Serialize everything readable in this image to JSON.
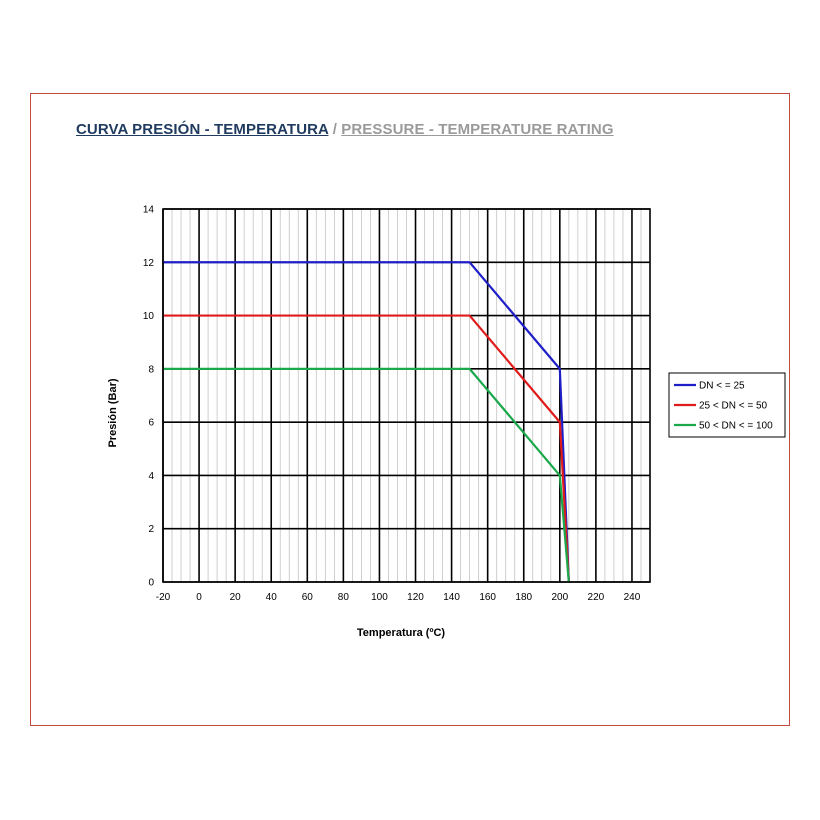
{
  "title": {
    "spanish": "CURVA PRESIÓN - TEMPERATURA",
    "separator": " / ",
    "english": "PRESSURE - TEMPERATURE RATING"
  },
  "colors": {
    "frame": "#c8473f",
    "title_es": "#1f3a5f",
    "title_en": "#9a9a9a",
    "series": [
      "#1f1fc8",
      "#e01b1b",
      "#1aa84a"
    ]
  },
  "chart_data": {
    "type": "line",
    "xlabel": "Temperatura (ºC)",
    "ylabel": "Presión (Bar)",
    "xlim": [
      -20,
      250
    ],
    "ylim": [
      0,
      14
    ],
    "xticks": [
      -20,
      0,
      20,
      40,
      60,
      80,
      100,
      120,
      140,
      160,
      180,
      200,
      220,
      240
    ],
    "yticks": [
      0,
      2,
      4,
      6,
      8,
      10,
      12,
      14
    ],
    "grid": true,
    "legend_position": "right",
    "series": [
      {
        "name": "DN < = 25",
        "color": "#1f1fc8",
        "x": [
          -20,
          150,
          200,
          205
        ],
        "y": [
          12,
          12,
          8,
          0
        ]
      },
      {
        "name": "25 < DN < = 50",
        "color": "#e01b1b",
        "x": [
          -20,
          150,
          200,
          205
        ],
        "y": [
          10,
          10,
          6,
          0
        ]
      },
      {
        "name": "50 < DN < = 100",
        "color": "#1aa84a",
        "x": [
          -20,
          150,
          200,
          205
        ],
        "y": [
          8,
          8,
          4,
          0
        ]
      }
    ]
  }
}
